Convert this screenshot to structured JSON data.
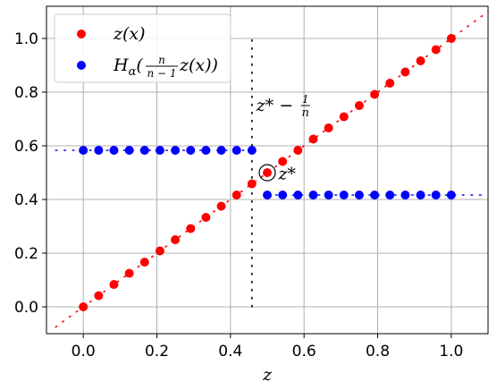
{
  "chart_data": {
    "type": "scatter",
    "xlabel": "z",
    "ylabel": "",
    "title": "",
    "xlim": [
      -0.1,
      1.1
    ],
    "ylim": [
      -0.1,
      1.12
    ],
    "xticks": [
      0.0,
      0.2,
      0.4,
      0.6,
      0.8,
      1.0
    ],
    "yticks": [
      0.0,
      0.2,
      0.4,
      0.6,
      0.8,
      1.0
    ],
    "xtick_labels": [
      "0.0",
      "0.2",
      "0.4",
      "0.6",
      "0.8",
      "1.0"
    ],
    "ytick_labels": [
      "0.0",
      "0.2",
      "0.4",
      "0.6",
      "0.8",
      "1.0"
    ],
    "grid": true,
    "legend_position": "top-left",
    "n": 24,
    "series": [
      {
        "name": "z(x)",
        "color": "#ff0000",
        "x": [
          0.0,
          0.0417,
          0.0833,
          0.125,
          0.1667,
          0.2083,
          0.25,
          0.2917,
          0.3333,
          0.375,
          0.4167,
          0.4583,
          0.5,
          0.5417,
          0.5833,
          0.625,
          0.6667,
          0.7083,
          0.75,
          0.7917,
          0.8333,
          0.875,
          0.9167,
          0.9583,
          1.0
        ],
        "y": [
          0.0,
          0.0417,
          0.0833,
          0.125,
          0.1667,
          0.2083,
          0.25,
          0.2917,
          0.3333,
          0.375,
          0.4167,
          0.4583,
          0.5,
          0.5417,
          0.5833,
          0.625,
          0.6667,
          0.7083,
          0.75,
          0.7917,
          0.8333,
          0.875,
          0.9167,
          0.9583,
          1.0
        ],
        "dotted_line": {
          "x": [
            -0.075,
            1.1
          ],
          "y": [
            -0.075,
            1.1
          ]
        }
      },
      {
        "name": "H_α(n/(n−1) z(x))",
        "color": "#0000ff",
        "x": [
          0.0,
          0.0417,
          0.0833,
          0.125,
          0.1667,
          0.2083,
          0.25,
          0.2917,
          0.3333,
          0.375,
          0.4167,
          0.4583,
          0.5,
          0.5417,
          0.5833,
          0.625,
          0.6667,
          0.7083,
          0.75,
          0.7917,
          0.8333,
          0.875,
          0.9167,
          0.9583,
          1.0
        ],
        "y": [
          0.5833,
          0.5833,
          0.5833,
          0.5833,
          0.5833,
          0.5833,
          0.5833,
          0.5833,
          0.5833,
          0.5833,
          0.5833,
          0.5833,
          0.4167,
          0.4167,
          0.4167,
          0.4167,
          0.4167,
          0.4167,
          0.4167,
          0.4167,
          0.4167,
          0.4167,
          0.4167,
          0.4167,
          0.4167
        ],
        "dotted_lines": [
          {
            "x": [
              -0.075,
              0.4583
            ],
            "y": [
              0.5833,
              0.5833
            ]
          },
          {
            "x": [
              0.5,
              1.1
            ],
            "y": [
              0.4167,
              0.4167
            ]
          }
        ]
      }
    ],
    "vertical_line": {
      "x": 0.4583,
      "y": [
        0.0,
        1.0
      ]
    },
    "highlight_point": {
      "x": 0.5,
      "y": 0.5
    },
    "annotations": {
      "threshold_label": "z* − 1/n",
      "threshold_label_main": "z* − ",
      "threshold_frac_num": "1",
      "threshold_frac_den": "n",
      "threshold_label_pos": [
        0.47,
        0.73
      ],
      "zstar_label": "z*",
      "zstar_label_pos": [
        0.53,
        0.475
      ]
    }
  }
}
